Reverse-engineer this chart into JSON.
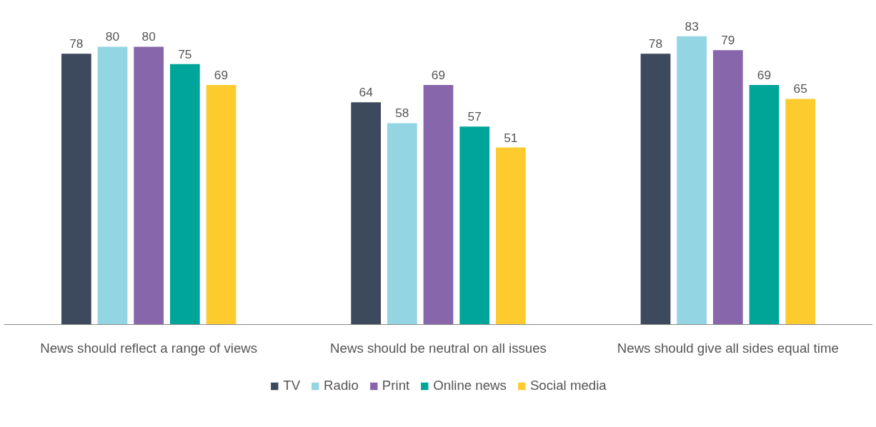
{
  "chart_data": {
    "type": "bar",
    "categories": [
      "News should reflect a range of views",
      "News should be neutral on all issues",
      "News should give all sides equal time"
    ],
    "series": [
      {
        "name": "TV",
        "color": "#3d4a5e",
        "values": [
          78,
          64,
          78
        ]
      },
      {
        "name": "Radio",
        "color": "#94d5e3",
        "values": [
          80,
          58,
          83
        ]
      },
      {
        "name": "Print",
        "color": "#8766ab",
        "values": [
          80,
          69,
          79
        ]
      },
      {
        "name": "Online news",
        "color": "#00a59a",
        "values": [
          75,
          57,
          69
        ]
      },
      {
        "name": "Social media",
        "color": "#fecb2f",
        "values": [
          69,
          51,
          65
        ]
      }
    ],
    "data_labels": true,
    "tick_labels": "x",
    "grid": false,
    "legend": "bottom"
  }
}
